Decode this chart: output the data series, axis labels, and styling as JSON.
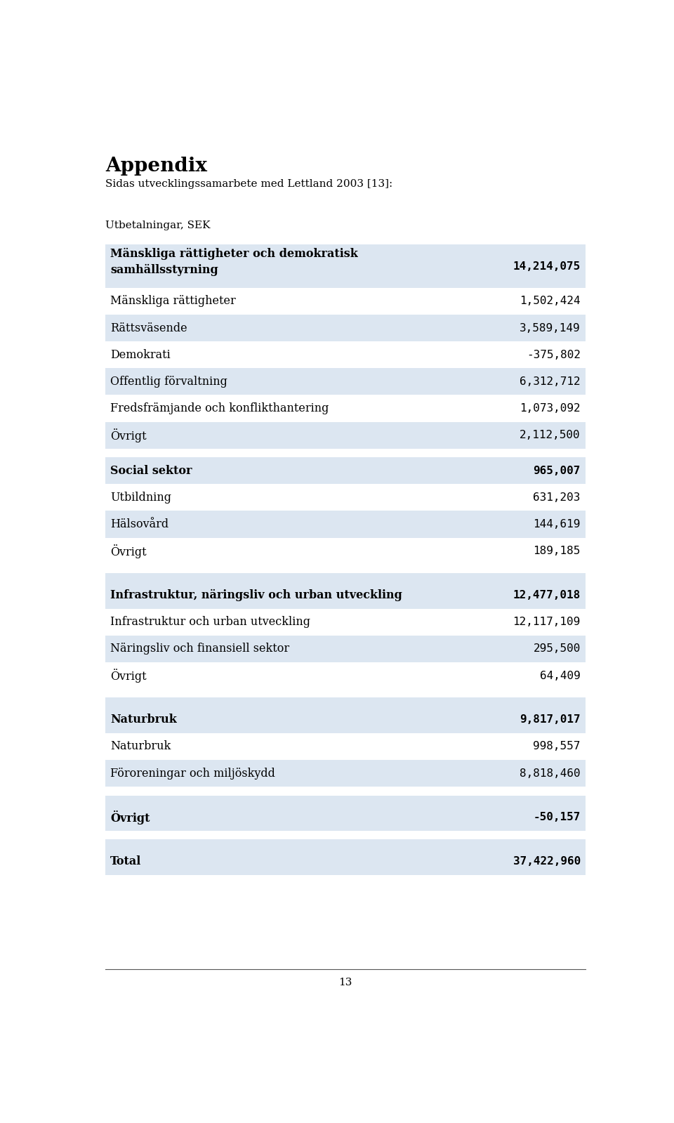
{
  "title": "Appendix",
  "subtitle": "Sidas utvecklingssamarbete med Lettland 2003 [13]:",
  "col_header": "Utbetalningar, SEK",
  "page_number": "13",
  "rows": [
    {
      "label": "Mänskliga rättigheter och demokratisk\nsamhällsstyrning",
      "value": "14,214,075",
      "bold": true,
      "header": true,
      "bg": "#dce6f1",
      "spacer": false
    },
    {
      "label": "Mänskliga rättigheter",
      "value": "1,502,424",
      "bold": false,
      "header": false,
      "bg": "#ffffff",
      "spacer": false
    },
    {
      "label": "Rättsväsende",
      "value": "3,589,149",
      "bold": false,
      "header": false,
      "bg": "#dce6f1",
      "spacer": false
    },
    {
      "label": "Demokrati",
      "value": "-375,802",
      "bold": false,
      "header": false,
      "bg": "#ffffff",
      "spacer": false
    },
    {
      "label": "Offentlig förvaltning",
      "value": "6,312,712",
      "bold": false,
      "header": false,
      "bg": "#dce6f1",
      "spacer": false
    },
    {
      "label": "Fredsfrämjande och konflikthantering",
      "value": "1,073,092",
      "bold": false,
      "header": false,
      "bg": "#ffffff",
      "spacer": false
    },
    {
      "label": "Övrigt",
      "value": "2,112,500",
      "bold": false,
      "header": false,
      "bg": "#dce6f1",
      "spacer": false
    },
    {
      "label": "",
      "value": "",
      "bold": false,
      "header": false,
      "bg": "#ffffff",
      "spacer": true
    },
    {
      "label": "Social sektor",
      "value": "965,007",
      "bold": true,
      "header": true,
      "bg": "#dce6f1",
      "spacer": false
    },
    {
      "label": "Utbildning",
      "value": "631,203",
      "bold": false,
      "header": false,
      "bg": "#ffffff",
      "spacer": false
    },
    {
      "label": "Hälsovård",
      "value": "144,619",
      "bold": false,
      "header": false,
      "bg": "#dce6f1",
      "spacer": false
    },
    {
      "label": "Övrigt",
      "value": "189,185",
      "bold": false,
      "header": false,
      "bg": "#ffffff",
      "spacer": false
    },
    {
      "label": "",
      "value": "",
      "bold": false,
      "header": false,
      "bg": "#ffffff",
      "spacer": true
    },
    {
      "label": "",
      "value": "",
      "bold": false,
      "header": false,
      "bg": "#dce6f1",
      "spacer": true
    },
    {
      "label": "Infrastruktur, näringsliv och urban utveckling",
      "value": "12,477,018",
      "bold": true,
      "header": true,
      "bg": "#dce6f1",
      "spacer": false
    },
    {
      "label": "Infrastruktur och urban utveckling",
      "value": "12,117,109",
      "bold": false,
      "header": false,
      "bg": "#ffffff",
      "spacer": false
    },
    {
      "label": "Näringsliv och finansiell sektor",
      "value": "295,500",
      "bold": false,
      "header": false,
      "bg": "#dce6f1",
      "spacer": false
    },
    {
      "label": "Övrigt",
      "value": "64,409",
      "bold": false,
      "header": false,
      "bg": "#ffffff",
      "spacer": false
    },
    {
      "label": "",
      "value": "",
      "bold": false,
      "header": false,
      "bg": "#ffffff",
      "spacer": true
    },
    {
      "label": "",
      "value": "",
      "bold": false,
      "header": false,
      "bg": "#dce6f1",
      "spacer": true
    },
    {
      "label": "Naturbruk",
      "value": "9,817,017",
      "bold": true,
      "header": true,
      "bg": "#dce6f1",
      "spacer": false
    },
    {
      "label": "Naturbruk",
      "value": "998,557",
      "bold": false,
      "header": false,
      "bg": "#ffffff",
      "spacer": false
    },
    {
      "label": "Föroreningar och miljöskydd",
      "value": "8,818,460",
      "bold": false,
      "header": false,
      "bg": "#dce6f1",
      "spacer": false
    },
    {
      "label": "",
      "value": "",
      "bold": false,
      "header": false,
      "bg": "#ffffff",
      "spacer": true
    },
    {
      "label": "",
      "value": "",
      "bold": false,
      "header": false,
      "bg": "#dce6f1",
      "spacer": true
    },
    {
      "label": "Övrigt",
      "value": "-50,157",
      "bold": true,
      "header": true,
      "bg": "#dce6f1",
      "spacer": false
    },
    {
      "label": "",
      "value": "",
      "bold": false,
      "header": false,
      "bg": "#ffffff",
      "spacer": true
    },
    {
      "label": "",
      "value": "",
      "bold": false,
      "header": false,
      "bg": "#dce6f1",
      "spacer": true
    },
    {
      "label": "Total",
      "value": "37,422,960",
      "bold": true,
      "header": true,
      "bg": "#dce6f1",
      "spacer": false
    }
  ],
  "bg_color": "#ffffff",
  "text_color": "#000000"
}
